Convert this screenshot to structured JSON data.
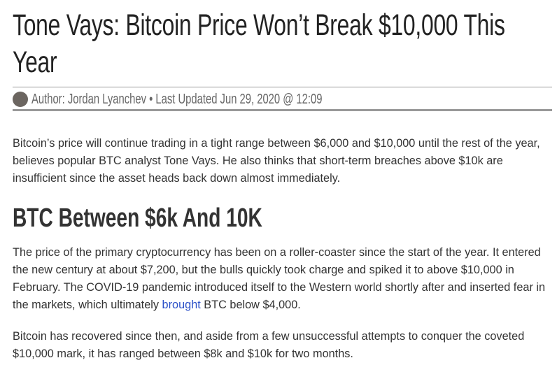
{
  "article": {
    "title": "Tone Vays: Bitcoin Price Won’t Break $10,000 This Year",
    "byline": "Author: Jordan Lyanchev • Last Updated Jun 29, 2020 @ 12:09",
    "paragraphs": [
      "Bitcoin’s price will continue trading in a tight range between $6,000 and $10,000 until the rest of the year, believes popular BTC analyst Tone Vays. He also thinks that short-term breaches above $10k are insufficient since the asset heads back down almost immediately.",
      [
        "The price of the primary cryptocurrency has been on a roller-coaster since the start of the year. It entered the new century at about $7,200, but the bulls quickly took charge and spiked it to above $10,000 in February. The COVID-19 pandemic introduced itself to the Western world shortly after and inserted fear in the markets, which ultimately ",
        "brought",
        " BTC below $4,000."
      ],
      "Bitcoin has recovered since then, and aside from a few unsuccessful attempts to conquer the coveted $10,000 mark, it has ranged between $8k and $10k for two months."
    ],
    "heading": "BTC Between $6k And 10K"
  }
}
